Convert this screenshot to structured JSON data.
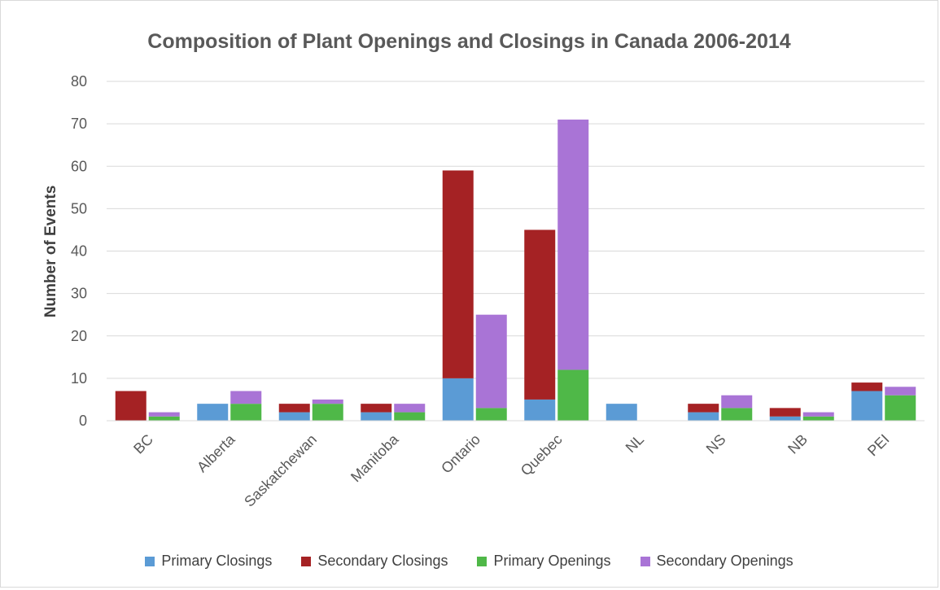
{
  "chart_data": {
    "type": "bar",
    "stacked": true,
    "title": "Composition of Plant Openings and Closings in Canada 2006-2014",
    "xlabel": "",
    "ylabel": "Number of Events",
    "ylim": [
      0,
      80
    ],
    "yticks": [
      0,
      10,
      20,
      30,
      40,
      50,
      60,
      70,
      80
    ],
    "grid": true,
    "legend_position": "bottom",
    "categories": [
      "BC",
      "Alberta",
      "Saskatchewan",
      "Manitoba",
      "Ontario",
      "Quebec",
      "NL",
      "NS",
      "NB",
      "PEI"
    ],
    "stacks": [
      {
        "name": "Closings",
        "series": [
          {
            "name": "Primary Closings",
            "color": "#5b9bd5",
            "values": [
              0,
              4,
              2,
              2,
              10,
              5,
              4,
              2,
              1,
              7
            ]
          },
          {
            "name": "Secondary Closings",
            "color": "#a52224",
            "values": [
              7,
              0,
              2,
              2,
              49,
              40,
              0,
              2,
              2,
              2
            ]
          }
        ]
      },
      {
        "name": "Openings",
        "series": [
          {
            "name": "Primary Openings",
            "color": "#4fb848",
            "values": [
              1,
              4,
              4,
              2,
              3,
              12,
              0,
              3,
              1,
              6
            ]
          },
          {
            "name": "Secondary Openings",
            "color": "#a974d6",
            "values": [
              1,
              3,
              1,
              2,
              22,
              59,
              0,
              3,
              1,
              2
            ]
          }
        ]
      }
    ]
  },
  "legend": [
    {
      "label": "Primary Closings",
      "color": "#5b9bd5"
    },
    {
      "label": "Secondary Closings",
      "color": "#a52224"
    },
    {
      "label": "Primary Openings",
      "color": "#4fb848"
    },
    {
      "label": "Secondary Openings",
      "color": "#a974d6"
    }
  ]
}
